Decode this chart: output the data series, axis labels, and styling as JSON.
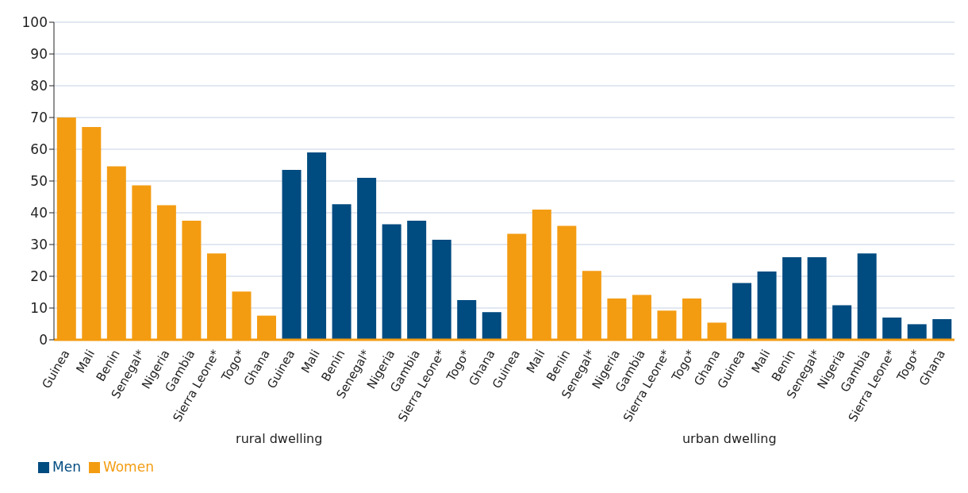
{
  "chart_data": {
    "type": "bar",
    "categories": [
      "Guinea",
      "Mali",
      "Benin",
      "Senegal*",
      "Nigeria",
      "Gambia",
      "Sierra Leone*",
      "Togo*",
      "Ghana",
      "Guinea",
      "Mali",
      "Benin",
      "Senegal*",
      "Nigeria",
      "Gambia",
      "Sierra Leone*",
      "Togo*",
      "Ghana",
      "Guinea",
      "Mali",
      "Benin",
      "Senegal*",
      "Nigeria",
      "Gambia",
      "Sierra Leone*",
      "Togo*",
      "Ghana",
      "Guinea",
      "Mali",
      "Benin",
      "Senegal*",
      "Nigeria",
      "Gambia",
      "Sierra Leone*",
      "Togo*",
      "Ghana"
    ],
    "series": [
      {
        "name": "Women",
        "color": "#f39c12",
        "values": [
          70,
          67,
          54.6,
          48.6,
          42.4,
          37.5,
          27.2,
          15.2,
          7.6,
          null,
          null,
          null,
          null,
          null,
          null,
          null,
          null,
          null,
          33.4,
          41,
          35.9,
          21.7,
          13,
          14.1,
          9.2,
          13,
          5.4,
          null,
          null,
          null,
          null,
          null,
          null,
          null,
          null,
          null
        ]
      },
      {
        "name": "Men",
        "color": "#004b80",
        "values": [
          null,
          null,
          null,
          null,
          null,
          null,
          null,
          null,
          null,
          53.5,
          59,
          42.7,
          51,
          36.4,
          37.5,
          31.5,
          12.5,
          8.7,
          null,
          null,
          null,
          null,
          null,
          null,
          null,
          null,
          null,
          17.9,
          21.5,
          26,
          26,
          10.9,
          27.2,
          7,
          4.9,
          6.5
        ]
      }
    ],
    "ylim": [
      0,
      100
    ],
    "yticks": [
      0,
      10,
      20,
      30,
      40,
      50,
      60,
      70,
      80,
      90,
      100
    ],
    "grid": "y",
    "legend": "bottom left",
    "annotations": [
      "rural dwelling",
      "urban dwelling"
    ]
  }
}
